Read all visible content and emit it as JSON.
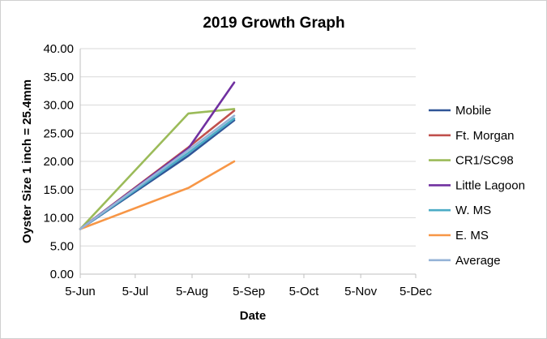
{
  "chart_data": {
    "type": "line",
    "title": "2019 Growth Graph",
    "xlabel": "Date",
    "ylabel": "Oyster Size 1 inch = 25.4mm",
    "ylim": [
      0,
      40
    ],
    "y_ticks": [
      "0.00",
      "5.00",
      "10.00",
      "15.00",
      "20.00",
      "25.00",
      "30.00",
      "35.00",
      "40.00"
    ],
    "x_ticks": [
      "5-Jun",
      "5-Jul",
      "5-Aug",
      "5-Sep",
      "5-Oct",
      "5-Nov",
      "5-Dec"
    ],
    "x_tick_days": [
      0,
      30,
      61,
      92,
      122,
      153,
      183
    ],
    "xlim_days": [
      0,
      183
    ],
    "grid": "horizontal",
    "legend_position": "right",
    "series": [
      {
        "name": "Mobile",
        "color": "#2F5597",
        "x": [
          "5-Jun",
          "3-Aug",
          "28-Aug"
        ],
        "x_days": [
          0,
          59,
          84
        ],
        "values": [
          8.0,
          21.0,
          27.3
        ]
      },
      {
        "name": "Ft. Morgan",
        "color": "#C0504D",
        "x": [
          "5-Jun",
          "3-Aug",
          "28-Aug"
        ],
        "x_days": [
          0,
          59,
          84
        ],
        "values": [
          8.0,
          22.5,
          29.0
        ]
      },
      {
        "name": "CR1/SC98",
        "color": "#9BBB59",
        "x": [
          "5-Jun",
          "3-Aug",
          "28-Aug"
        ],
        "x_days": [
          0,
          59,
          84
        ],
        "values": [
          8.0,
          28.5,
          29.3
        ]
      },
      {
        "name": "Little Lagoon",
        "color": "#7030A0",
        "x": [
          "5-Jun",
          "3-Aug",
          "28-Aug"
        ],
        "x_days": [
          0,
          59,
          84
        ],
        "values": [
          8.0,
          22.3,
          34.0
        ]
      },
      {
        "name": "W. MS",
        "color": "#4BACC6",
        "x": [
          "5-Jun",
          "3-Aug",
          "28-Aug"
        ],
        "x_days": [
          0,
          59,
          84
        ],
        "values": [
          8.0,
          21.5,
          27.6
        ]
      },
      {
        "name": "E. MS",
        "color": "#F79646",
        "x": [
          "5-Jun",
          "3-Aug",
          "28-Aug"
        ],
        "x_days": [
          0,
          59,
          84
        ],
        "values": [
          8.0,
          15.3,
          20.0
        ]
      },
      {
        "name": "Average",
        "color": "#95B3D7",
        "x": [
          "5-Jun",
          "3-Aug",
          "28-Aug"
        ],
        "x_days": [
          0,
          59,
          84
        ],
        "values": [
          8.0,
          22.0,
          28.1
        ]
      }
    ]
  }
}
